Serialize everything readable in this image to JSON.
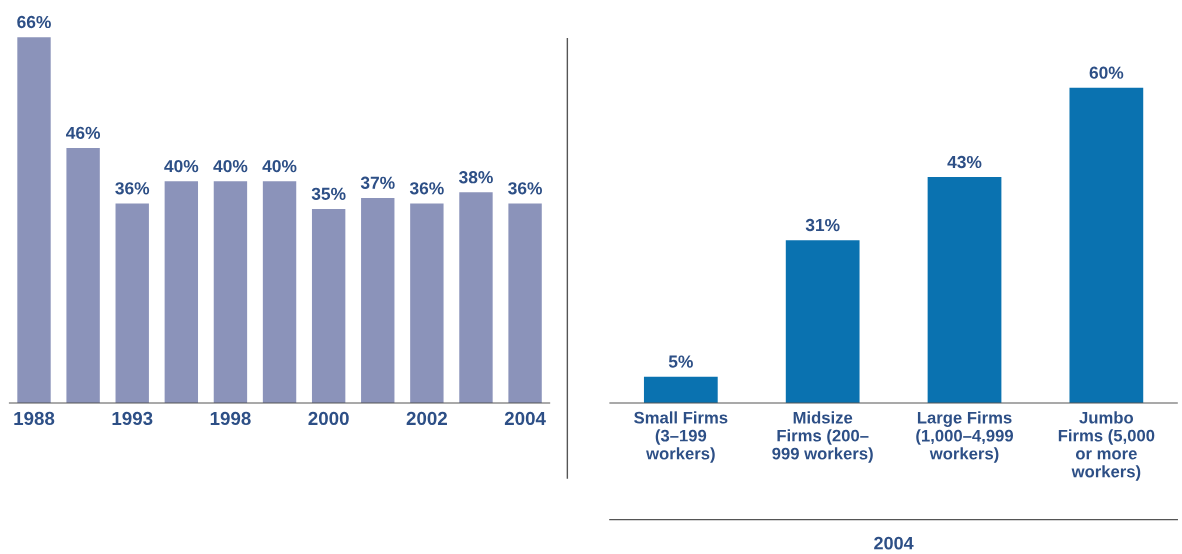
{
  "chart_data": [
    {
      "type": "bar",
      "categories": [
        "1988",
        null,
        "1993",
        null,
        "1998",
        null,
        "2000",
        null,
        "2002",
        null,
        "2004"
      ],
      "values": [
        66,
        46,
        36,
        40,
        40,
        40,
        35,
        37,
        36,
        38,
        36
      ],
      "value_labels": [
        "66%",
        "46%",
        "36%",
        "40%",
        "40%",
        "40%",
        "35%",
        "37%",
        "36%",
        "38%",
        "36%"
      ],
      "color": "#8b93ba"
    },
    {
      "type": "bar",
      "xlabel": "2004",
      "categories": [
        "Small Firms\n(3–199\nworkers)",
        "Midsize\nFirms (200–\n999 workers)",
        "Large Firms\n(1,000–4,999\nworkers)",
        "Jumbo\nFirms (5,000\nor more\nworkers)"
      ],
      "values": [
        5,
        31,
        43,
        60
      ],
      "value_labels": [
        "5%",
        "31%",
        "43%",
        "60%"
      ],
      "color": "#0a72b0"
    }
  ]
}
